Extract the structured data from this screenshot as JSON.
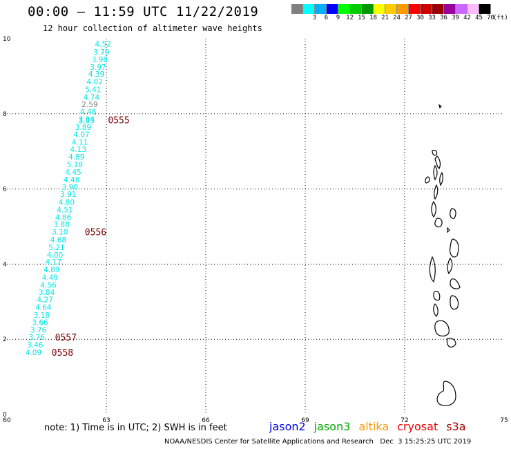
{
  "header": {
    "title": "00:00 – 11:59 UTC 11/22/2019",
    "subtitle": "12 hour collection of altimeter wave heights"
  },
  "legend": {
    "colors": [
      "#808080",
      "#00ffff",
      "#00b0ff",
      "#0000ff",
      "#00ff00",
      "#00cc00",
      "#009900",
      "#ffff00",
      "#ffcc00",
      "#ff9900",
      "#ff0000",
      "#cc0000",
      "#990000",
      "#990099",
      "#cc66ff",
      "#ffbbff",
      "#000000"
    ],
    "labels": [
      "",
      "3",
      "6",
      "9",
      "12",
      "15",
      "18",
      "21",
      "24",
      "27",
      "30",
      "33",
      "36",
      "39",
      "42",
      "45",
      "70"
    ],
    "unit": "(ft)"
  },
  "map": {
    "lon_range": [
      60,
      75
    ],
    "lat_range": [
      0,
      10
    ],
    "lon_ticks": [
      {
        "value": 60,
        "label": "60"
      },
      {
        "value": 63,
        "label": "63"
      },
      {
        "value": 66,
        "label": "66"
      },
      {
        "value": 69,
        "label": "69"
      },
      {
        "value": 72,
        "label": "72"
      },
      {
        "value": 75,
        "label": "75"
      }
    ],
    "lat_ticks": [
      {
        "value": 0,
        "label": "0"
      },
      {
        "value": 2,
        "label": "2"
      },
      {
        "value": 4,
        "label": "4"
      },
      {
        "value": 6,
        "label": "6"
      },
      {
        "value": 8,
        "label": "8"
      },
      {
        "value": 10,
        "label": "10"
      }
    ],
    "gridlines": true
  },
  "wave_heights": [
    {
      "lon": 62.9,
      "lat": 9.86,
      "swh": "4.52",
      "color": "#00e5e5"
    },
    {
      "lon": 62.85,
      "lat": 9.65,
      "swh": "3.79",
      "color": "#00e5e5"
    },
    {
      "lon": 62.8,
      "lat": 9.45,
      "swh": "3.98",
      "color": "#00e5e5"
    },
    {
      "lon": 62.75,
      "lat": 9.25,
      "swh": "3.97",
      "color": "#00e5e5"
    },
    {
      "lon": 62.7,
      "lat": 9.06,
      "swh": "4.39",
      "color": "#00e5e5"
    },
    {
      "lon": 62.65,
      "lat": 8.86,
      "swh": "4.02",
      "color": "#00e5e5"
    },
    {
      "lon": 62.6,
      "lat": 8.65,
      "swh": "5.41",
      "color": "#00e5e5"
    },
    {
      "lon": 62.55,
      "lat": 8.45,
      "swh": "4.74",
      "color": "#00e5e5"
    },
    {
      "lon": 62.5,
      "lat": 8.25,
      "swh": "2.59",
      "color": "#808080"
    },
    {
      "lon": 62.45,
      "lat": 8.06,
      "swh": "4.48",
      "color": "#00e5e5"
    },
    {
      "lon": 62.4,
      "lat": 7.86,
      "swh": "3.84",
      "color": "#00e5e5"
    },
    {
      "lon": 62.4,
      "lat": 7.82,
      "swh": "3.93",
      "color": "#00e5e5"
    },
    {
      "lon": 62.3,
      "lat": 7.65,
      "swh": "3.89",
      "color": "#00e5e5"
    },
    {
      "lon": 62.25,
      "lat": 7.45,
      "swh": "4.07",
      "color": "#00e5e5"
    },
    {
      "lon": 62.2,
      "lat": 7.25,
      "swh": "4.11",
      "color": "#00e5e5"
    },
    {
      "lon": 62.15,
      "lat": 7.06,
      "swh": "4.13",
      "color": "#00e5e5"
    },
    {
      "lon": 62.1,
      "lat": 6.86,
      "swh": "4.89",
      "color": "#00e5e5"
    },
    {
      "lon": 62.05,
      "lat": 6.65,
      "swh": "5.18",
      "color": "#00e5e5"
    },
    {
      "lon": 62.0,
      "lat": 6.45,
      "swh": "4.45",
      "color": "#00e5e5"
    },
    {
      "lon": 61.95,
      "lat": 6.25,
      "swh": "4.48",
      "color": "#00e5e5"
    },
    {
      "lon": 61.9,
      "lat": 6.06,
      "swh": "3.90",
      "color": "#00e5e5"
    },
    {
      "lon": 61.85,
      "lat": 5.86,
      "swh": "3.91",
      "color": "#00e5e5"
    },
    {
      "lon": 61.8,
      "lat": 5.65,
      "swh": "4.80",
      "color": "#00e5e5"
    },
    {
      "lon": 61.75,
      "lat": 5.45,
      "swh": "4.51",
      "color": "#00e5e5"
    },
    {
      "lon": 61.7,
      "lat": 5.25,
      "swh": "4.86",
      "color": "#00e5e5"
    },
    {
      "lon": 61.65,
      "lat": 5.06,
      "swh": "3.88",
      "color": "#00e5e5"
    },
    {
      "lon": 61.6,
      "lat": 4.86,
      "swh": "3.10",
      "color": "#00e5e5"
    },
    {
      "lon": 61.55,
      "lat": 4.65,
      "swh": "4.68",
      "color": "#00e5e5"
    },
    {
      "lon": 61.5,
      "lat": 4.45,
      "swh": "5.21",
      "color": "#00e5e5"
    },
    {
      "lon": 61.45,
      "lat": 4.25,
      "swh": "4.00",
      "color": "#00e5e5"
    },
    {
      "lon": 61.4,
      "lat": 4.06,
      "swh": "4.17",
      "color": "#00e5e5"
    },
    {
      "lon": 61.35,
      "lat": 3.86,
      "swh": "4.89",
      "color": "#00e5e5"
    },
    {
      "lon": 61.3,
      "lat": 3.65,
      "swh": "4.49",
      "color": "#00e5e5"
    },
    {
      "lon": 61.25,
      "lat": 3.45,
      "swh": "4.56",
      "color": "#00e5e5"
    },
    {
      "lon": 61.2,
      "lat": 3.25,
      "swh": "3.84",
      "color": "#00e5e5"
    },
    {
      "lon": 61.15,
      "lat": 3.06,
      "swh": "4.27",
      "color": "#00e5e5"
    },
    {
      "lon": 61.1,
      "lat": 2.86,
      "swh": "4.64",
      "color": "#00e5e5"
    },
    {
      "lon": 61.05,
      "lat": 2.65,
      "swh": "3.18",
      "color": "#00e5e5"
    },
    {
      "lon": 61.0,
      "lat": 2.45,
      "swh": "3.66",
      "color": "#00e5e5"
    },
    {
      "lon": 60.95,
      "lat": 2.25,
      "swh": "3.76",
      "color": "#00e5e5"
    },
    {
      "lon": 60.9,
      "lat": 2.06,
      "swh": "3.76",
      "color": "#00e5e5"
    },
    {
      "lon": 60.85,
      "lat": 1.86,
      "swh": "3.46",
      "color": "#00e5e5"
    },
    {
      "lon": 60.8,
      "lat": 1.65,
      "swh": "4.09",
      "color": "#00e5e5"
    }
  ],
  "time_labels": [
    {
      "lon": 63.05,
      "lat": 7.84,
      "text": "0555"
    },
    {
      "lon": 62.35,
      "lat": 4.86,
      "text": "0556"
    },
    {
      "lon": 61.45,
      "lat": 2.06,
      "text": "0557"
    },
    {
      "lon": 61.35,
      "lat": 1.65,
      "text": "0558"
    }
  ],
  "footer": {
    "note": "note: 1) Time is in UTC; 2) SWH is in feet",
    "satellites": [
      {
        "name": "jason2",
        "color": "#0000ee"
      },
      {
        "name": "jason3",
        "color": "#00aa00"
      },
      {
        "name": "altika",
        "color": "#ff9900"
      },
      {
        "name": "cryosat",
        "color": "#ee0000"
      },
      {
        "name": "s3a",
        "color": "#aa0000"
      }
    ],
    "credit": "NOAA/NESDIS Center for Satellite Applications and Research   Dec  3 15:25:25 UTC 2019"
  }
}
